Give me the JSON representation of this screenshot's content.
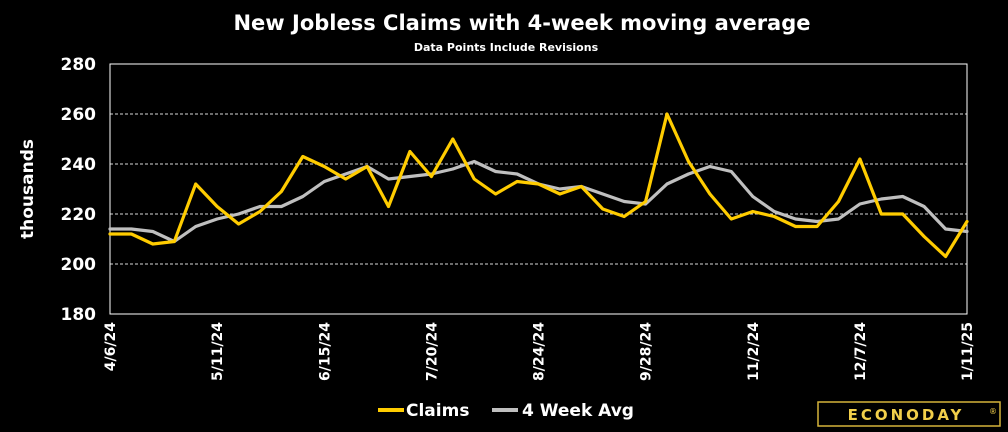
{
  "chart_data": {
    "type": "line",
    "title": "New Jobless Claims with 4-week moving average",
    "subtitle": "Data Points Include Revisions",
    "ylabel": "thousands",
    "ylim": [
      180,
      280
    ],
    "yticks": [
      "180",
      "200",
      "220",
      "240",
      "260",
      "280"
    ],
    "grid": true,
    "legend_position": "bottom-center",
    "x": [
      "4/6/24",
      "4/13/24",
      "4/20/24",
      "4/27/24",
      "5/4/24",
      "5/11/24",
      "5/18/24",
      "5/25/24",
      "6/1/24",
      "6/8/24",
      "6/15/24",
      "6/22/24",
      "6/29/24",
      "7/6/24",
      "7/13/24",
      "7/20/24",
      "7/27/24",
      "8/3/24",
      "8/10/24",
      "8/17/24",
      "8/24/24",
      "8/31/24",
      "9/7/24",
      "9/14/24",
      "9/21/24",
      "9/28/24",
      "10/5/24",
      "10/12/24",
      "10/19/24",
      "10/26/24",
      "11/2/24",
      "11/9/24",
      "11/16/24",
      "11/23/24",
      "11/30/24",
      "12/7/24",
      "12/14/24",
      "12/21/24",
      "12/28/24",
      "1/4/25",
      "1/11/25"
    ],
    "xtick_labels": [
      "4/6/24",
      "5/11/24",
      "6/15/24",
      "7/20/24",
      "8/24/24",
      "9/28/24",
      "11/2/24",
      "12/7/24",
      "1/11/25"
    ],
    "series": [
      {
        "name": "Claims",
        "color": "#FFCC00",
        "values": [
          212,
          212,
          208,
          209,
          232,
          223,
          216,
          221,
          229,
          243,
          239,
          234,
          239,
          223,
          245,
          235,
          250,
          234,
          228,
          233,
          232,
          228,
          231,
          222,
          219,
          225,
          260,
          241,
          228,
          218,
          221,
          219,
          215,
          215,
          225,
          242,
          220,
          220,
          211,
          203,
          217
        ]
      },
      {
        "name": "4 Week Avg",
        "color": "#BFBFBF",
        "values": [
          214,
          214,
          213,
          209,
          215,
          218,
          220,
          223,
          223,
          227,
          233,
          236,
          239,
          234,
          235,
          236,
          238,
          241,
          237,
          236,
          232,
          230,
          231,
          228,
          225,
          224,
          232,
          236,
          239,
          237,
          227,
          221,
          218,
          217,
          218,
          224,
          226,
          227,
          223,
          214,
          213
        ]
      }
    ]
  },
  "logo": {
    "text": "ECONODAY",
    "mark": "®"
  }
}
